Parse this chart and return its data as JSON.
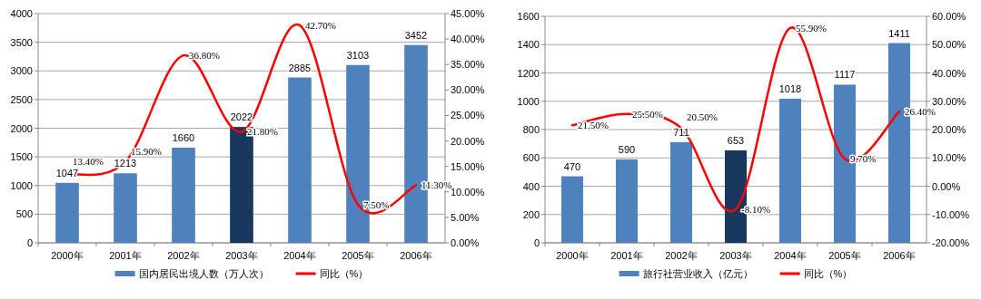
{
  "chart_data": [
    {
      "type": "bar",
      "categories": [
        "2000年",
        "2001年",
        "2002年",
        "2003年",
        "2004年",
        "2005年",
        "2006年"
      ],
      "series": [
        {
          "name": "国内居民出境人数（万人次）",
          "color": "#4f81bd",
          "colors": [
            "#4f81bd",
            "#4f81bd",
            "#4f81bd",
            "#17375e",
            "#4f81bd",
            "#4f81bd",
            "#4f81bd"
          ],
          "values": [
            1047,
            1213,
            1660,
            2022,
            2885,
            3103,
            3452
          ],
          "value_labels": [
            "1047",
            "1213",
            "1660",
            "2022",
            "2885",
            "3103",
            "3452"
          ]
        },
        {
          "type": "line",
          "axis": "y2",
          "name": "同比（%）",
          "color": "#ff0000",
          "values": [
            13.4,
            15.9,
            36.8,
            21.8,
            42.7,
            7.5,
            11.3
          ],
          "value_labels": [
            "13.40%",
            "15.90%",
            "36.80%",
            "21.80%",
            "42.70%",
            "7.50%",
            "11.30%"
          ]
        }
      ],
      "ylim": [
        0,
        4000
      ],
      "yticks": [
        0,
        500,
        1000,
        1500,
        2000,
        2500,
        3000,
        3500,
        4000
      ],
      "y2lim": [
        0,
        45
      ],
      "y2ticks": [
        {
          "value": 0,
          "label": "0.00%"
        },
        {
          "value": 5,
          "label": "5.00%"
        },
        {
          "value": 10,
          "label": "10.00%"
        },
        {
          "value": 15,
          "label": "15.00%"
        },
        {
          "value": 20,
          "label": "20.00%"
        },
        {
          "value": 25,
          "label": "25.00%"
        },
        {
          "value": 30,
          "label": "30.00%"
        },
        {
          "value": 35,
          "label": "35.00%"
        },
        {
          "value": 40,
          "label": "40.00%"
        },
        {
          "value": 45,
          "label": "45.00%"
        }
      ],
      "grid": "y",
      "legend": "bottom",
      "marker": "none"
    },
    {
      "type": "bar",
      "categories": [
        "2000年",
        "2001年",
        "2002年",
        "2003年",
        "2004年",
        "2005年",
        "2006年"
      ],
      "series": [
        {
          "name": "旅行社营业收入（亿元）",
          "color": "#4f81bd",
          "colors": [
            "#4f81bd",
            "#4f81bd",
            "#4f81bd",
            "#17375e",
            "#4f81bd",
            "#4f81bd",
            "#4f81bd"
          ],
          "values": [
            470,
            590,
            711,
            653,
            1018,
            1117,
            1411
          ],
          "value_labels": [
            "470",
            "590",
            "711",
            "653",
            "1018",
            "1117",
            "1411"
          ]
        },
        {
          "type": "line",
          "axis": "y2",
          "name": "同比（%）",
          "color": "#ff0000",
          "values": [
            21.5,
            25.5,
            20.5,
            -8.1,
            55.9,
            9.7,
            26.4
          ],
          "value_labels": [
            "21.50%",
            "25.50%",
            "20.50%",
            "-8.10%",
            "55.90%",
            "9.70%",
            "26.40%"
          ]
        }
      ],
      "ylim": [
        0,
        1600
      ],
      "yticks": [
        0,
        200,
        400,
        600,
        800,
        1000,
        1200,
        1400,
        1600
      ],
      "y2lim": [
        -20,
        60
      ],
      "y2ticks": [
        {
          "value": -20,
          "label": "-20.00%"
        },
        {
          "value": -10,
          "label": "-10.00%"
        },
        {
          "value": 0,
          "label": "0.00%"
        },
        {
          "value": 10,
          "label": "10.00%"
        },
        {
          "value": 20,
          "label": "20.00%"
        },
        {
          "value": 30,
          "label": "30.00%"
        },
        {
          "value": 40,
          "label": "40.00%"
        },
        {
          "value": 50,
          "label": "50.00%"
        },
        {
          "value": 60,
          "label": "60.00%"
        }
      ],
      "grid": "y",
      "legend": "bottom",
      "marker": "none"
    }
  ]
}
